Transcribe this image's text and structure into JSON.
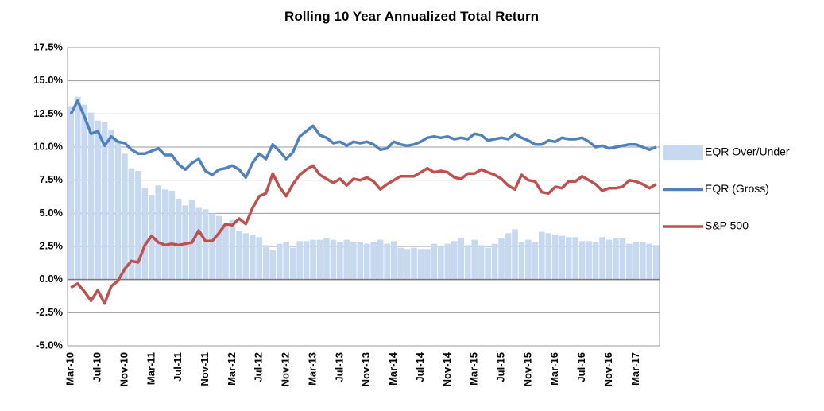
{
  "chart_data": {
    "type": "bar-line",
    "title": "Rolling 10 Year Annualized Total Return",
    "categories": [
      "Mar-10",
      null,
      null,
      null,
      "Jul-10",
      null,
      null,
      null,
      "Nov-10",
      null,
      null,
      null,
      "Mar-11",
      null,
      null,
      null,
      "Jul-11",
      null,
      null,
      null,
      "Nov-11",
      null,
      null,
      null,
      "Mar-12",
      null,
      null,
      null,
      "Jul-12",
      null,
      null,
      null,
      "Nov-12",
      null,
      null,
      null,
      "Mar-13",
      null,
      null,
      null,
      "Jul-13",
      null,
      null,
      null,
      "Nov-13",
      null,
      null,
      null,
      "Mar-14",
      null,
      null,
      null,
      "Jul-14",
      null,
      null,
      null,
      "Nov-14",
      null,
      null,
      null,
      "Mar-15",
      null,
      null,
      null,
      "Jul-15",
      null,
      null,
      null,
      "Nov-15",
      null,
      null,
      null,
      "Mar-16",
      null,
      null,
      null,
      "Jul-16",
      null,
      null,
      null,
      "Nov-16",
      null,
      null,
      null,
      "Mar-17",
      null,
      null,
      null
    ],
    "series": [
      {
        "name": "EQR Over/Under",
        "kind": "bar",
        "color": "#c6d9f1",
        "values": [
          13.1,
          13.8,
          13.2,
          12.6,
          12.0,
          11.9,
          11.3,
          10.5,
          9.5,
          8.4,
          8.2,
          6.9,
          6.4,
          7.1,
          6.8,
          6.7,
          6.1,
          5.6,
          6.0,
          5.4,
          5.3,
          5.0,
          4.8,
          4.2,
          4.5,
          3.7,
          3.5,
          3.4,
          3.2,
          2.6,
          2.2,
          2.7,
          2.8,
          2.4,
          2.9,
          2.9,
          3.0,
          3.0,
          3.1,
          3.0,
          2.8,
          3.0,
          2.8,
          2.8,
          2.7,
          2.8,
          3.0,
          2.7,
          2.9,
          2.4,
          2.3,
          2.4,
          2.3,
          2.3,
          2.7,
          2.5,
          2.7,
          2.9,
          3.1,
          2.6,
          3.0,
          2.6,
          2.4,
          2.7,
          3.1,
          3.5,
          3.8,
          2.8,
          3.0,
          2.8,
          3.6,
          3.5,
          3.4,
          3.3,
          3.2,
          3.2,
          2.9,
          2.9,
          2.8,
          3.2,
          3.0,
          3.1,
          3.1,
          2.7,
          2.8,
          2.8,
          2.7,
          2.6
        ]
      },
      {
        "name": "EQR (Gross)",
        "kind": "line",
        "color": "#4f81bd",
        "values": [
          12.5,
          13.5,
          12.3,
          11.0,
          11.2,
          10.1,
          10.8,
          10.4,
          10.3,
          9.8,
          9.5,
          9.5,
          9.7,
          9.9,
          9.4,
          9.4,
          8.7,
          8.3,
          8.8,
          9.1,
          8.2,
          7.9,
          8.3,
          8.4,
          8.6,
          8.3,
          7.7,
          8.8,
          9.5,
          9.1,
          10.2,
          9.7,
          9.1,
          9.6,
          10.8,
          11.2,
          11.6,
          10.9,
          10.7,
          10.3,
          10.4,
          10.1,
          10.4,
          10.3,
          10.4,
          10.2,
          9.8,
          9.9,
          10.4,
          10.2,
          10.1,
          10.2,
          10.4,
          10.7,
          10.8,
          10.7,
          10.8,
          10.6,
          10.7,
          10.6,
          11.0,
          10.9,
          10.5,
          10.6,
          10.7,
          10.6,
          11.0,
          10.7,
          10.5,
          10.2,
          10.2,
          10.5,
          10.4,
          10.7,
          10.6,
          10.6,
          10.7,
          10.4,
          10.0,
          10.1,
          9.9,
          10.0,
          10.1,
          10.2,
          10.2,
          10.0,
          9.8,
          10.0
        ]
      },
      {
        "name": "S&P 500",
        "kind": "line",
        "color": "#c0504d",
        "values": [
          -0.6,
          -0.3,
          -0.9,
          -1.6,
          -0.8,
          -1.8,
          -0.5,
          -0.1,
          0.8,
          1.4,
          1.3,
          2.6,
          3.3,
          2.8,
          2.6,
          2.7,
          2.6,
          2.7,
          2.8,
          3.7,
          2.9,
          2.9,
          3.5,
          4.2,
          4.1,
          4.6,
          4.2,
          5.4,
          6.3,
          6.5,
          8.0,
          7.0,
          6.3,
          7.2,
          7.9,
          8.3,
          8.6,
          7.9,
          7.6,
          7.3,
          7.6,
          7.1,
          7.6,
          7.5,
          7.7,
          7.4,
          6.8,
          7.2,
          7.5,
          7.8,
          7.8,
          7.8,
          8.1,
          8.4,
          8.1,
          8.2,
          8.1,
          7.7,
          7.6,
          8.0,
          8.0,
          8.3,
          8.1,
          7.9,
          7.6,
          7.1,
          6.8,
          7.9,
          7.5,
          7.4,
          6.6,
          6.5,
          7.0,
          6.9,
          7.4,
          7.4,
          7.8,
          7.5,
          7.2,
          6.7,
          6.9,
          6.9,
          7.0,
          7.5,
          7.4,
          7.2,
          6.9,
          7.2
        ]
      }
    ],
    "ylim": [
      -5,
      17.5
    ],
    "yticks": [
      {
        "value": -5,
        "label": "-5.0%"
      },
      {
        "value": -2.5,
        "label": "-2.5%"
      },
      {
        "value": 0,
        "label": "0.0%"
      },
      {
        "value": 2.5,
        "label": "2.5%"
      },
      {
        "value": 5,
        "label": "5.0%"
      },
      {
        "value": 7.5,
        "label": "7.5%"
      },
      {
        "value": 10,
        "label": "10.0%"
      },
      {
        "value": 12.5,
        "label": "12.5%"
      },
      {
        "value": 15,
        "label": "15.0%"
      },
      {
        "value": 17.5,
        "label": "17.5%"
      }
    ],
    "grid": true,
    "legend": "right"
  }
}
